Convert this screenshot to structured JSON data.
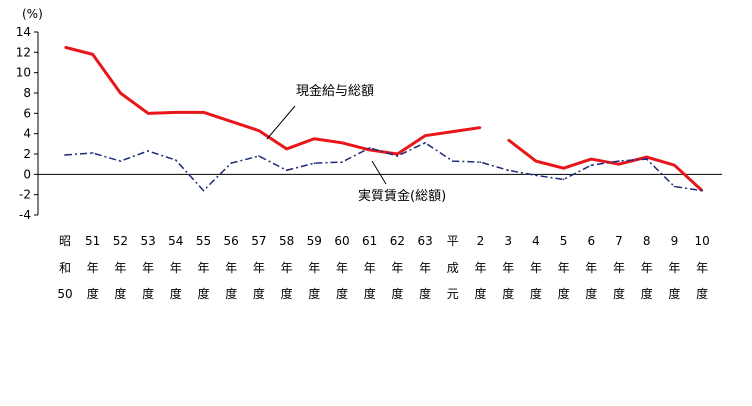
{
  "chart_data": {
    "type": "line",
    "unit_label": "(%)",
    "ylim": [
      -4,
      14
    ],
    "yticks": [
      -4,
      -2,
      0,
      2,
      4,
      6,
      8,
      10,
      12,
      14
    ],
    "categories": [
      [
        "昭",
        "和",
        "50"
      ],
      [
        "51",
        "年",
        "度"
      ],
      [
        "52",
        "年",
        "度"
      ],
      [
        "53",
        "年",
        "度"
      ],
      [
        "54",
        "年",
        "度"
      ],
      [
        "55",
        "年",
        "度"
      ],
      [
        "56",
        "年",
        "度"
      ],
      [
        "57",
        "年",
        "度"
      ],
      [
        "58",
        "年",
        "度"
      ],
      [
        "59",
        "年",
        "度"
      ],
      [
        "60",
        "年",
        "度"
      ],
      [
        "61",
        "年",
        "度"
      ],
      [
        "62",
        "年",
        "度"
      ],
      [
        "63",
        "年",
        "度"
      ],
      [
        "平",
        "成",
        "元"
      ],
      [
        "2",
        "年",
        "度"
      ],
      [
        "3",
        "年",
        "度"
      ],
      [
        "4",
        "年",
        "度"
      ],
      [
        "5",
        "年",
        "度"
      ],
      [
        "6",
        "年",
        "度"
      ],
      [
        "7",
        "年",
        "度"
      ],
      [
        "8",
        "年",
        "度"
      ],
      [
        "9",
        "年",
        "度"
      ],
      [
        "10",
        "年",
        "度"
      ]
    ],
    "series": [
      {
        "name": "現金給与総額",
        "color": "#e8161b",
        "style": "solid",
        "values": [
          12.5,
          11.8,
          8.0,
          6.0,
          6.1,
          6.1,
          5.2,
          4.3,
          2.5,
          3.5,
          3.1,
          2.4,
          2.0,
          3.8,
          4.2,
          4.6,
          3.4,
          1.3,
          0.6,
          1.5,
          1.0,
          1.7,
          0.9,
          -1.6
        ]
      },
      {
        "name": "実質賃金(総額)",
        "color": "#1c2a78",
        "style": "dashdot",
        "values": [
          1.9,
          2.1,
          1.3,
          2.3,
          1.4,
          -1.6,
          1.1,
          1.8,
          0.4,
          1.1,
          1.2,
          2.6,
          1.8,
          3.1,
          1.3,
          1.2,
          0.4,
          -0.1,
          -0.5,
          0.9,
          1.3,
          1.5,
          -1.2,
          -1.6
        ]
      }
    ],
    "annotations": [
      {
        "text": "現金給与総額",
        "series": 0
      },
      {
        "text": "実質賃金(総額)",
        "series": 1
      }
    ]
  }
}
